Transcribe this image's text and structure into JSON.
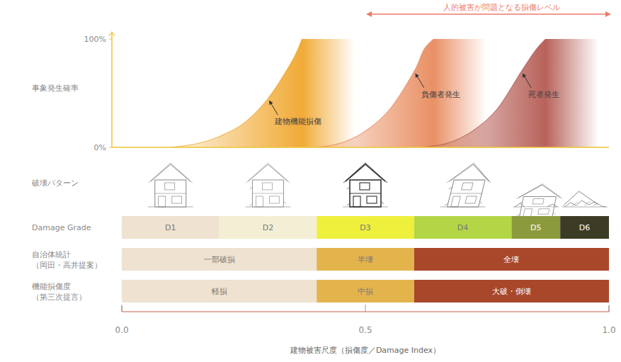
{
  "chart_data": {
    "type": "line",
    "y_label": "事象発生確率",
    "x_label": "建物被害尺度（損傷度／Damage Index）",
    "xlim": [
      0,
      1
    ],
    "ylim": [
      0,
      100
    ],
    "xticks": [
      {
        "value": 0,
        "label": "0.0"
      },
      {
        "value": 0.5,
        "label": "0.5"
      },
      {
        "value": 1,
        "label": "1.0"
      }
    ],
    "yticks": [
      {
        "value": 0,
        "label": "0%"
      },
      {
        "value": 100,
        "label": "100%"
      }
    ],
    "grid": false,
    "series": [
      {
        "name": "建物機能損傷",
        "color": "#f0a62c",
        "x": [
          0.1,
          0.15,
          0.2,
          0.25,
          0.3,
          0.35,
          0.37
        ],
        "values": [
          0,
          3,
          10,
          22,
          45,
          80,
          100
        ]
      },
      {
        "name": "負傷者発生",
        "color": "#e88a5c",
        "x": [
          0.4,
          0.45,
          0.5,
          0.55,
          0.6,
          0.62,
          0.64
        ],
        "values": [
          0,
          4,
          15,
          35,
          70,
          90,
          100
        ]
      },
      {
        "name": "死者発生",
        "color": "#b45a52",
        "x": [
          0.62,
          0.67,
          0.72,
          0.77,
          0.82,
          0.85,
          0.87
        ],
        "values": [
          0,
          4,
          15,
          35,
          70,
          90,
          100
        ]
      }
    ],
    "annotation": {
      "text": "人的被害が問題となる損傷レベル",
      "xrange": [
        0.5,
        1.0
      ],
      "color": "#ec7a68"
    },
    "pattern_label": "破壊パターン",
    "bands": [
      {
        "label": [
          "Damage Grade"
        ],
        "segments": [
          {
            "label": "D1",
            "start": 0,
            "end": 0.2,
            "color": "#efe2d0"
          },
          {
            "label": "D2",
            "start": 0.2,
            "end": 0.4,
            "color": "#f4efd4"
          },
          {
            "label": "D3",
            "start": 0.4,
            "end": 0.6,
            "color": "#eef03c"
          },
          {
            "label": "D4",
            "start": 0.6,
            "end": 0.8,
            "color": "#b4d646"
          },
          {
            "label": "D5",
            "start": 0.8,
            "end": 0.9,
            "color": "#8c9a3e"
          },
          {
            "label": "D6",
            "start": 0.9,
            "end": 1.0,
            "color": "#3c3c26"
          }
        ]
      },
      {
        "label": [
          "自治体統計",
          "（岡田・高井提案）"
        ],
        "segments": [
          {
            "label": "一部破損",
            "start": 0,
            "end": 0.4,
            "color": "#efe2d0"
          },
          {
            "label": "半壊",
            "start": 0.4,
            "end": 0.6,
            "color": "#e4b44c"
          },
          {
            "label": "全壊",
            "start": 0.6,
            "end": 1.0,
            "color": "#a8472a"
          }
        ]
      },
      {
        "label": [
          "機能損傷度",
          "（第三次提言）"
        ],
        "segments": [
          {
            "label": "軽損",
            "start": 0,
            "end": 0.4,
            "color": "#efe2d0"
          },
          {
            "label": "中損",
            "start": 0.4,
            "end": 0.6,
            "color": "#e4b44c"
          },
          {
            "label": "大破・倒壊",
            "start": 0.6,
            "end": 1.0,
            "color": "#a8472a"
          }
        ]
      }
    ]
  }
}
